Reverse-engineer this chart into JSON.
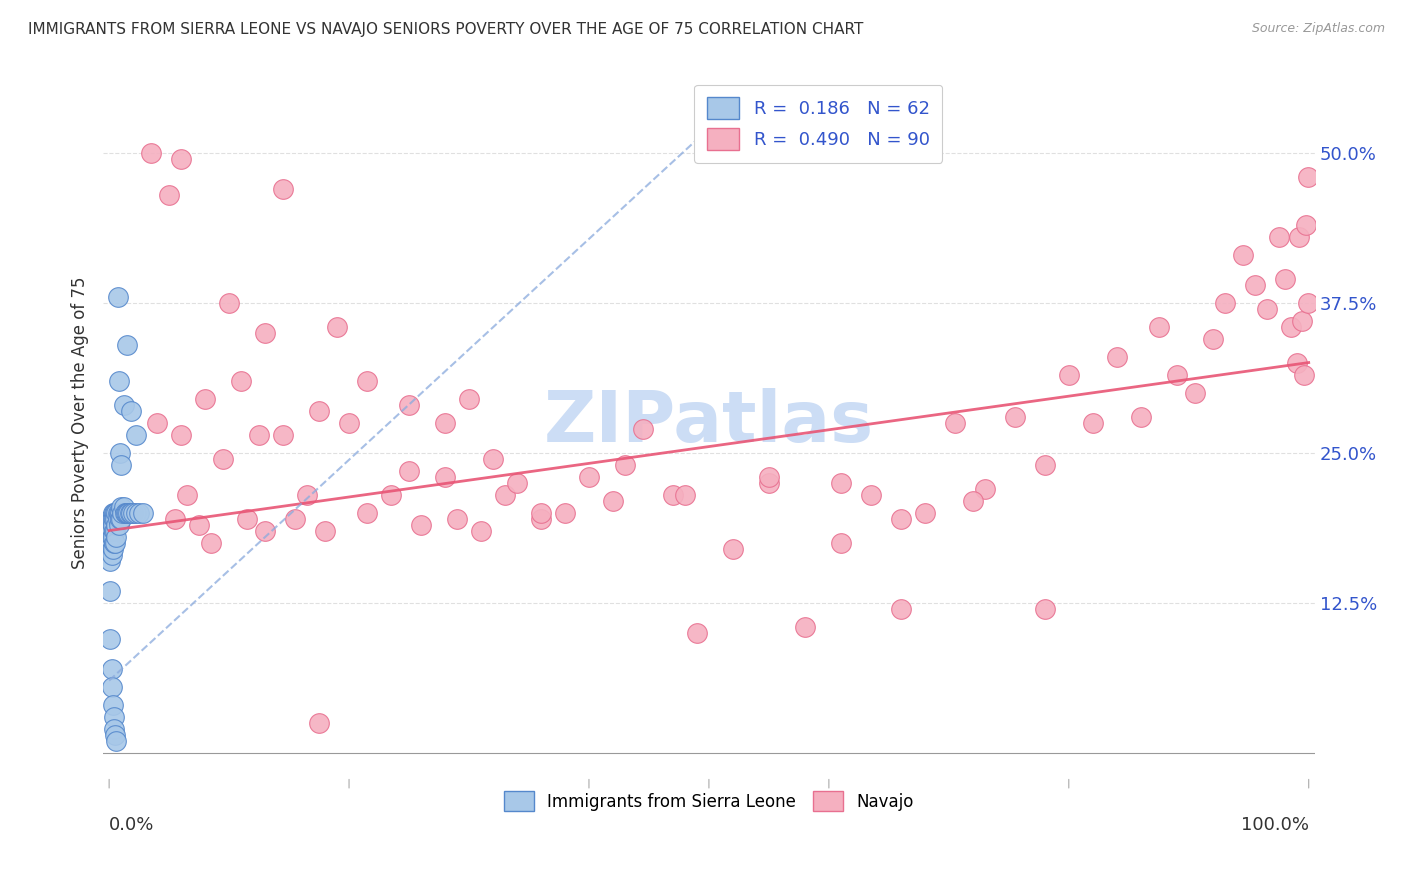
{
  "title": "IMMIGRANTS FROM SIERRA LEONE VS NAVAJO SENIORS POVERTY OVER THE AGE OF 75 CORRELATION CHART",
  "source": "Source: ZipAtlas.com",
  "ylabel": "Seniors Poverty Over the Age of 75",
  "background_color": "#ffffff",
  "grid_color": "#dddddd",
  "legend_r1": "R =  0.186",
  "legend_n1": "N = 62",
  "legend_r2": "R =  0.490",
  "legend_n2": "N = 90",
  "series1_label": "Immigrants from Sierra Leone",
  "series2_label": "Navajo",
  "series1_face": "#a8c8e8",
  "series2_face": "#f5b0c0",
  "series1_edge": "#5588cc",
  "series2_edge": "#e87090",
  "trendline1_color": "#8aaadd",
  "trendline2_color": "#e85575",
  "watermark": "ZIPatlas",
  "watermark_color": "#ccddf5",
  "xlim": [
    -0.005,
    1.005
  ],
  "ylim": [
    -0.02,
    0.57
  ],
  "yticks": [
    0.125,
    0.25,
    0.375,
    0.5
  ],
  "ytick_labels": [
    "12.5%",
    "25.0%",
    "37.5%",
    "50.0%"
  ],
  "xtick_left_label": "0.0%",
  "xtick_right_label": "100.0%",
  "trendline1_x0": 0.0,
  "trendline1_x1": 0.5,
  "trendline1_y0": 0.06,
  "trendline1_y1": 0.52,
  "trendline2_x0": 0.0,
  "trendline2_x1": 1.0,
  "trendline2_y0": 0.185,
  "trendline2_y1": 0.325,
  "sierra_leone_x": [
    0.001,
    0.001,
    0.001,
    0.001,
    0.002,
    0.002,
    0.002,
    0.002,
    0.002,
    0.003,
    0.003,
    0.003,
    0.003,
    0.003,
    0.004,
    0.004,
    0.004,
    0.004,
    0.005,
    0.005,
    0.005,
    0.005,
    0.006,
    0.006,
    0.006,
    0.007,
    0.007,
    0.008,
    0.008,
    0.009,
    0.009,
    0.01,
    0.01,
    0.011,
    0.012,
    0.013,
    0.014,
    0.015,
    0.016,
    0.017,
    0.018,
    0.02,
    0.022,
    0.025,
    0.028,
    0.001,
    0.001,
    0.002,
    0.002,
    0.003,
    0.004,
    0.004,
    0.005,
    0.006,
    0.007,
    0.008,
    0.009,
    0.01,
    0.012,
    0.015,
    0.018,
    0.022
  ],
  "sierra_leone_y": [
    0.195,
    0.185,
    0.175,
    0.16,
    0.195,
    0.185,
    0.18,
    0.17,
    0.165,
    0.2,
    0.195,
    0.19,
    0.18,
    0.17,
    0.2,
    0.195,
    0.185,
    0.175,
    0.2,
    0.195,
    0.185,
    0.175,
    0.2,
    0.19,
    0.18,
    0.2,
    0.195,
    0.2,
    0.19,
    0.2,
    0.195,
    0.205,
    0.195,
    0.2,
    0.205,
    0.2,
    0.2,
    0.2,
    0.2,
    0.2,
    0.2,
    0.2,
    0.2,
    0.2,
    0.2,
    0.135,
    0.095,
    0.07,
    0.055,
    0.04,
    0.03,
    0.02,
    0.015,
    0.01,
    0.38,
    0.31,
    0.25,
    0.24,
    0.29,
    0.34,
    0.285,
    0.265
  ],
  "navajo_x": [
    0.02,
    0.035,
    0.04,
    0.055,
    0.06,
    0.065,
    0.075,
    0.08,
    0.085,
    0.095,
    0.11,
    0.115,
    0.125,
    0.13,
    0.145,
    0.155,
    0.165,
    0.175,
    0.18,
    0.2,
    0.215,
    0.235,
    0.25,
    0.26,
    0.28,
    0.29,
    0.31,
    0.33,
    0.34,
    0.36,
    0.38,
    0.4,
    0.42,
    0.445,
    0.47,
    0.49,
    0.52,
    0.55,
    0.58,
    0.61,
    0.635,
    0.66,
    0.68,
    0.705,
    0.73,
    0.755,
    0.78,
    0.8,
    0.82,
    0.84,
    0.86,
    0.875,
    0.89,
    0.905,
    0.92,
    0.93,
    0.945,
    0.955,
    0.965,
    0.975,
    0.98,
    0.985,
    0.99,
    0.992,
    0.994,
    0.996,
    0.998,
    0.999,
    0.999,
    0.175,
    0.05,
    0.06,
    0.1,
    0.13,
    0.145,
    0.19,
    0.215,
    0.25,
    0.28,
    0.3,
    0.32,
    0.36,
    0.43,
    0.48,
    0.55,
    0.61,
    0.66,
    0.72,
    0.78
  ],
  "navajo_y": [
    0.2,
    0.5,
    0.275,
    0.195,
    0.265,
    0.215,
    0.19,
    0.295,
    0.175,
    0.245,
    0.31,
    0.195,
    0.265,
    0.185,
    0.265,
    0.195,
    0.215,
    0.285,
    0.185,
    0.275,
    0.2,
    0.215,
    0.235,
    0.19,
    0.23,
    0.195,
    0.185,
    0.215,
    0.225,
    0.195,
    0.2,
    0.23,
    0.21,
    0.27,
    0.215,
    0.1,
    0.17,
    0.225,
    0.105,
    0.175,
    0.215,
    0.12,
    0.2,
    0.275,
    0.22,
    0.28,
    0.24,
    0.315,
    0.275,
    0.33,
    0.28,
    0.355,
    0.315,
    0.3,
    0.345,
    0.375,
    0.415,
    0.39,
    0.37,
    0.43,
    0.395,
    0.355,
    0.325,
    0.43,
    0.36,
    0.315,
    0.44,
    0.48,
    0.375,
    0.025,
    0.465,
    0.495,
    0.375,
    0.35,
    0.47,
    0.355,
    0.31,
    0.29,
    0.275,
    0.295,
    0.245,
    0.2,
    0.24,
    0.215,
    0.23,
    0.225,
    0.195,
    0.21,
    0.12
  ]
}
